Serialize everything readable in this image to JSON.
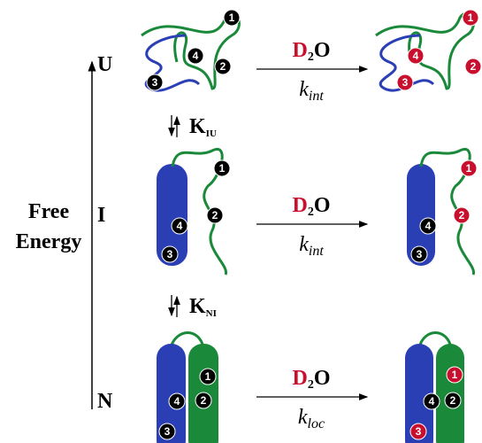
{
  "axis": {
    "label_lines": [
      "Free",
      "Energy"
    ]
  },
  "states": [
    {
      "label": "U",
      "before_sites": [
        "1",
        "2",
        "3",
        "4"
      ],
      "after_sites": [
        "1",
        "2",
        "3",
        "4"
      ]
    },
    {
      "label": "I",
      "before_sites": [
        "1",
        "2",
        "3",
        "4"
      ],
      "after_sites": [
        "1",
        "2",
        "3",
        "4"
      ]
    },
    {
      "label": "N",
      "before_sites": [
        "1",
        "2",
        "3",
        "4"
      ],
      "after_sites": [
        "1",
        "2",
        "3",
        "4"
      ]
    }
  ],
  "equilibria": [
    {
      "symbol": "K",
      "sub": "IU"
    },
    {
      "symbol": "K",
      "sub": "NI"
    }
  ],
  "reactions": [
    {
      "reagent": {
        "atom": "D",
        "sub": "2",
        "rest": "O"
      },
      "rate": {
        "symbol": "k",
        "sub": "int"
      }
    },
    {
      "reagent": {
        "atom": "D",
        "sub": "2",
        "rest": "O"
      },
      "rate": {
        "symbol": "k",
        "sub": "int"
      }
    },
    {
      "reagent": {
        "atom": "D",
        "sub": "2",
        "rest": "O"
      },
      "rate": {
        "symbol": "k",
        "sub": "loc"
      }
    }
  ]
}
